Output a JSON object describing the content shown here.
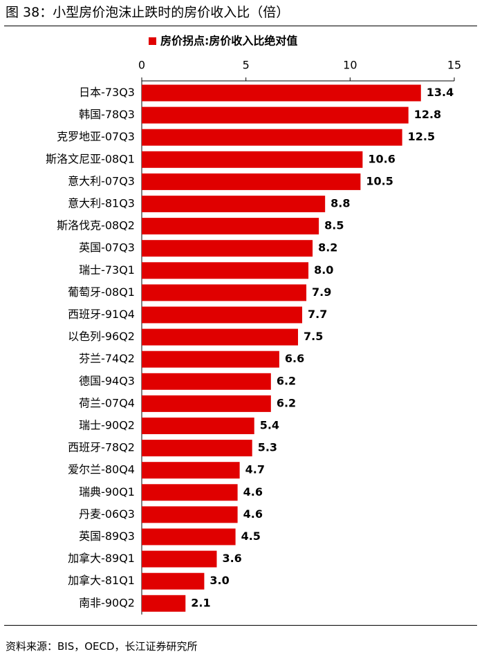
{
  "figure": {
    "title": "图 38：小型房价泡沫止跌时的房价收入比（倍）",
    "source": "资料来源：BIS，OECD，长江证券研究所"
  },
  "colors": {
    "bar": "#e00000",
    "axis": "#000000",
    "text": "#000000"
  },
  "chart_data": {
    "type": "bar",
    "orientation": "horizontal",
    "x_axis_position": "top",
    "grid": false,
    "legend_position": "top-center",
    "xlim": [
      0,
      15
    ],
    "xticks": [
      0,
      5,
      10,
      15
    ],
    "xtick_labels": [
      "0",
      "5",
      "10",
      "15"
    ],
    "categories": [
      "日本-73Q3",
      "韩国-78Q3",
      "克罗地亚-07Q3",
      "斯洛文尼亚-08Q1",
      "意大利-07Q3",
      "意大利-81Q3",
      "斯洛伐克-08Q2",
      "英国-07Q3",
      "瑞士-73Q1",
      "葡萄牙-08Q1",
      "西班牙-91Q4",
      "以色列-96Q2",
      "芬兰-74Q2",
      "德国-94Q3",
      "荷兰-07Q4",
      "瑞士-90Q2",
      "西班牙-78Q2",
      "爱尔兰-80Q4",
      "瑞典-90Q1",
      "丹麦-06Q3",
      "英国-89Q3",
      "加拿大-89Q1",
      "加拿大-81Q1",
      "南非-90Q2"
    ],
    "series": [
      {
        "name": "房价拐点:房价收入比绝对值",
        "values": [
          13.4,
          12.8,
          12.5,
          10.6,
          10.5,
          8.8,
          8.5,
          8.2,
          8.0,
          7.9,
          7.7,
          7.5,
          6.6,
          6.2,
          6.2,
          5.4,
          5.3,
          4.7,
          4.6,
          4.6,
          4.5,
          3.6,
          3.0,
          2.1
        ],
        "labels": [
          "13.4",
          "12.8",
          "12.5",
          "10.6",
          "10.5",
          "8.8",
          "8.5",
          "8.2",
          "8.0",
          "7.9",
          "7.7",
          "7.5",
          "6.6",
          "6.2",
          "6.2",
          "5.4",
          "5.3",
          "4.7",
          "4.6",
          "4.6",
          "4.5",
          "3.6",
          "3.0",
          "2.1"
        ]
      }
    ]
  }
}
